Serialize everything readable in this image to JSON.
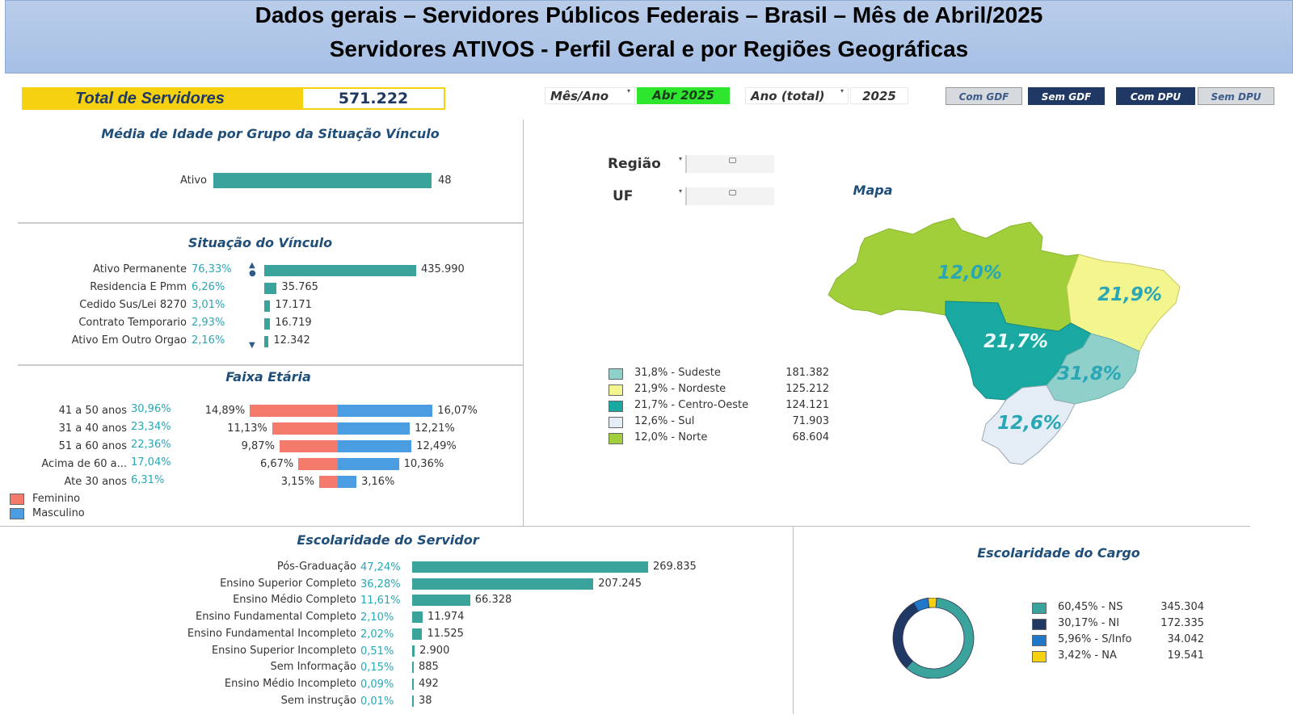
{
  "header": {
    "line1": "Dados gerais – Servidores Públicos Federais – Brasil – Mês de Abril/2025",
    "line2": "Servidores ATIVOS - Perfil Geral e por Regiões Geográficas"
  },
  "total": {
    "label": "Total de Servidores",
    "value": "571.222"
  },
  "filters": {
    "mes_ano_label": "Mês/Ano",
    "mes_ano_value": "Abr 2025",
    "ano_label": "Ano (total)",
    "ano_value": "2025",
    "regiao_label": "Região",
    "uf_label": "UF"
  },
  "buttons": {
    "com_gdf": "Com GDF",
    "sem_gdf": "Sem GDF",
    "com_dpu": "Com DPU",
    "sem_dpu": "Sem DPU"
  },
  "colors": {
    "bar": "#3aa39b",
    "feminino": "#f47b6b",
    "masculino": "#4a9de0",
    "pct_text": "#2aa6b4",
    "header_bg": "#a6bfe4",
    "yellow": "#f5d10f",
    "navy": "#1f3864"
  },
  "chart_data": [
    {
      "id": "media_idade",
      "type": "bar",
      "title": "Média de Idade por Grupo da Situação Vínculo",
      "categories": [
        "Ativo"
      ],
      "values": [
        48
      ],
      "value_labels": [
        "48"
      ]
    },
    {
      "id": "situacao_vinculo",
      "type": "bar",
      "title": "Situação do Vínculo",
      "categories": [
        "Ativo Permanente",
        "Residencia E Pmm",
        "Cedido Sus/Lei 8270",
        "Contrato Temporario",
        "Ativo Em Outro Orgao"
      ],
      "percents": [
        "76,33%",
        "6,26%",
        "3,01%",
        "2,93%",
        "2,16%"
      ],
      "values": [
        435990,
        35765,
        17171,
        16719,
        12342
      ],
      "value_labels": [
        "435.990",
        "35.765",
        "17.171",
        "16.719",
        "12.342"
      ]
    },
    {
      "id": "faixa_etaria",
      "type": "bar",
      "title": "Faixa Etária",
      "categories": [
        "41 a 50 anos",
        "31 a 40 anos",
        "51 a 60 anos",
        "Acima de 60 a...",
        "Ate 30 anos"
      ],
      "percents": [
        "30,96%",
        "23,34%",
        "22,36%",
        "17,04%",
        "6,31%"
      ],
      "series": [
        {
          "name": "Feminino",
          "values": [
            14.89,
            11.13,
            9.87,
            6.67,
            3.15
          ],
          "labels": [
            "14,89%",
            "11,13%",
            "9,87%",
            "6,67%",
            "3,15%"
          ]
        },
        {
          "name": "Masculino",
          "values": [
            16.07,
            12.21,
            12.49,
            10.36,
            3.16
          ],
          "labels": [
            "16,07%",
            "12,21%",
            "12,49%",
            "10,36%",
            "3,16%"
          ]
        }
      ],
      "legend": [
        "Feminino",
        "Masculino"
      ]
    },
    {
      "id": "mapa",
      "type": "map",
      "title": "Mapa",
      "regions": [
        {
          "name": "Sudeste",
          "legend": "31,8% - Sudeste",
          "map_label": "31,8%",
          "value": 181382,
          "value_label": "181.382",
          "color": "#8fd0cb"
        },
        {
          "name": "Nordeste",
          "legend": "21,9% - Nordeste",
          "map_label": "21,9%",
          "value": 125212,
          "value_label": "125.212",
          "color": "#f3f58f"
        },
        {
          "name": "Centro-Oeste",
          "legend": "21,7% - Centro-Oeste",
          "map_label": "21,7%",
          "value": 124121,
          "value_label": "124.121",
          "color": "#1aa9a2"
        },
        {
          "name": "Sul",
          "legend": "12,6% - Sul",
          "map_label": "12,6%",
          "value": 71903,
          "value_label": "71.903",
          "color": "#e4edf5"
        },
        {
          "name": "Norte",
          "legend": "12,0% - Norte",
          "map_label": "12,0%",
          "value": 68604,
          "value_label": "68.604",
          "color": "#a0cf3a"
        }
      ]
    },
    {
      "id": "escolaridade_servidor",
      "type": "bar",
      "title": "Escolaridade do Servidor",
      "categories": [
        "Pós-Graduação",
        "Ensino Superior Completo",
        "Ensino Médio Completo",
        "Ensino Fundamental Completo",
        "Ensino Fundamental Incompleto",
        "Ensino Superior Incompleto",
        "Sem Informação",
        "Ensino Médio Incompleto",
        "Sem instrução"
      ],
      "percents": [
        "47,24%",
        "36,28%",
        "11,61%",
        "2,10%",
        "2,02%",
        "0,51%",
        "0,15%",
        "0,09%",
        "0,01%"
      ],
      "values": [
        269835,
        207245,
        66328,
        11974,
        11525,
        2900,
        885,
        492,
        38
      ],
      "value_labels": [
        "269.835",
        "207.245",
        "66.328",
        "11.974",
        "11.525",
        "2.900",
        "885",
        "492",
        "38"
      ]
    },
    {
      "id": "escolaridade_cargo",
      "type": "pie",
      "title": "Escolaridade do Cargo",
      "categories": [
        "NS",
        "NI",
        "S/Info",
        "NA"
      ],
      "legend": [
        "60,45% - NS",
        "30,17% - NI",
        "5,96% - S/Info",
        "3,42% - NA"
      ],
      "values": [
        345304,
        172335,
        34042,
        19541
      ],
      "value_labels": [
        "345.304",
        "172.335",
        "34.042",
        "19.541"
      ],
      "percents_num": [
        60.45,
        30.17,
        5.96,
        3.42
      ],
      "colors": [
        "#3aa39b",
        "#1f3864",
        "#1f78c8",
        "#f5d10f"
      ]
    }
  ]
}
